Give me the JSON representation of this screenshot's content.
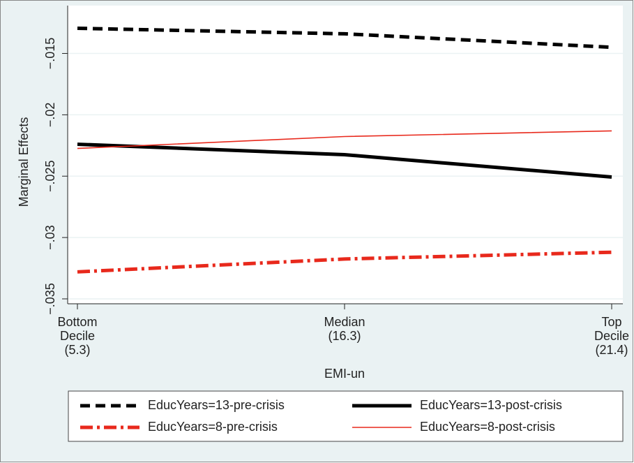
{
  "chart_data": {
    "type": "line",
    "categories": [
      [
        "Bottom",
        "Decile",
        "(5.3)"
      ],
      [
        "Median",
        "(16.3)"
      ],
      [
        "Top",
        "Decile",
        "(21.4)"
      ]
    ],
    "x_label": "EMI-un",
    "y_label": "Marginal Effects",
    "ylim": [
      -0.0354,
      -0.0111
    ],
    "yticks": [
      {
        "value": -0.015,
        "label": "−.015"
      },
      {
        "value": -0.02,
        "label": "−.02"
      },
      {
        "value": -0.025,
        "label": "−.025"
      },
      {
        "value": -0.03,
        "label": "−.03"
      },
      {
        "value": -0.035,
        "label": "−.035"
      }
    ],
    "grid": true,
    "legend": "bottom",
    "series": [
      {
        "name": "EducYears=13-pre-crisis",
        "color": "#000000",
        "style": "dash",
        "width": "thick",
        "values": [
          -0.01295,
          -0.0134,
          -0.0145
        ]
      },
      {
        "name": "EducYears=13-post-crisis",
        "color": "#000000",
        "style": "solid",
        "width": "thick",
        "values": [
          -0.0224,
          -0.02325,
          -0.02507
        ]
      },
      {
        "name": "EducYears=8-pre-crisis",
        "color": "#e8291c",
        "style": "dashdot",
        "width": "thick",
        "values": [
          -0.0328,
          -0.03175,
          -0.0312
        ]
      },
      {
        "name": "EducYears=8-post-crisis",
        "color": "#e8291c",
        "style": "solid",
        "width": "thin",
        "values": [
          -0.02274,
          -0.02177,
          -0.02131
        ]
      }
    ]
  }
}
